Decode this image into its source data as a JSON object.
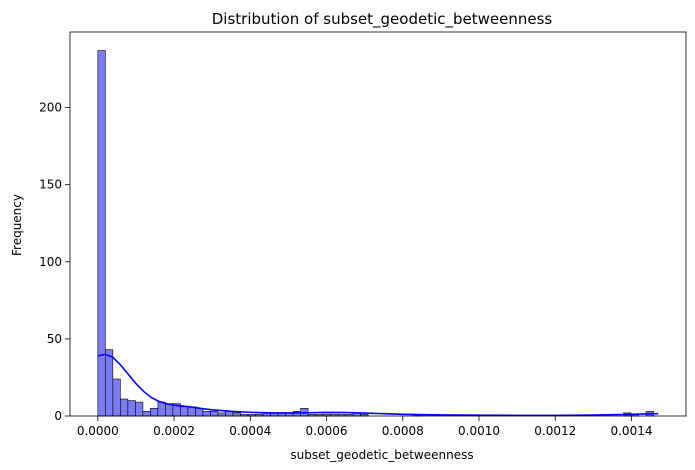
{
  "chart_data": {
    "type": "bar",
    "title": "Distribution of subset_geodetic_betweenness",
    "xlabel": "subset_geodetic_betweenness",
    "ylabel": "Frequency",
    "xlim": [
      -7.3e-05,
      0.001543
    ],
    "ylim": [
      0,
      249
    ],
    "xticks": [
      0.0,
      0.0002,
      0.0004,
      0.0006,
      0.0008,
      0.001,
      0.0012,
      0.0014
    ],
    "xtick_labels": [
      "0.0000",
      "0.0002",
      "0.0004",
      "0.0006",
      "0.0008",
      "0.0010",
      "0.0012",
      "0.0014"
    ],
    "yticks": [
      0,
      50,
      100,
      150,
      200
    ],
    "ytick_labels": [
      "0",
      "50",
      "100",
      "150",
      "200"
    ],
    "bin_start": 0.0,
    "bin_width": 1.97e-05,
    "counts": [
      237,
      43,
      24,
      11,
      10,
      9,
      3,
      5,
      9,
      8,
      8,
      6,
      6,
      5,
      3,
      3,
      2,
      3,
      2,
      1,
      1,
      1,
      2,
      2,
      2,
      2,
      3,
      5,
      1,
      1,
      1,
      1,
      1,
      1,
      2,
      1,
      0,
      0,
      0,
      0,
      0,
      0,
      1,
      0,
      0,
      0,
      0,
      0,
      0,
      0,
      0,
      0,
      0,
      0,
      0,
      0,
      0,
      0,
      0,
      0,
      0,
      0,
      0,
      0,
      0,
      0,
      0,
      0,
      0,
      0,
      2,
      1,
      0,
      3
    ],
    "kde": {
      "x": [
        0.0,
        2e-05,
        4e-05,
        6e-05,
        8e-05,
        0.0001,
        0.00012,
        0.00014,
        0.00016,
        0.00018,
        0.0002,
        0.00022,
        0.00024,
        0.00026,
        0.00028,
        0.0003,
        0.00034,
        0.00038,
        0.00042,
        0.00046,
        0.0005,
        0.00055,
        0.0006,
        0.00065,
        0.0007,
        0.00075,
        0.0008,
        0.0009,
        0.001,
        0.0011,
        0.0012,
        0.0013,
        0.0014,
        0.00145,
        0.00147
      ],
      "y": [
        39,
        40,
        38,
        33,
        27,
        21,
        16,
        12,
        9.5,
        8,
        7,
        6.5,
        6,
        5.3,
        4.6,
        4,
        3.2,
        2.6,
        2.2,
        2,
        2,
        2.1,
        2.3,
        2.2,
        1.9,
        1.5,
        1.1,
        0.7,
        0.5,
        0.4,
        0.4,
        0.6,
        1.1,
        1.4,
        1.5
      ]
    },
    "colors": {
      "bar_fill": "#7b7bf5",
      "bar_edge": "#000000",
      "kde_line": "#0000ff"
    },
    "grid": false,
    "legend": "none"
  }
}
